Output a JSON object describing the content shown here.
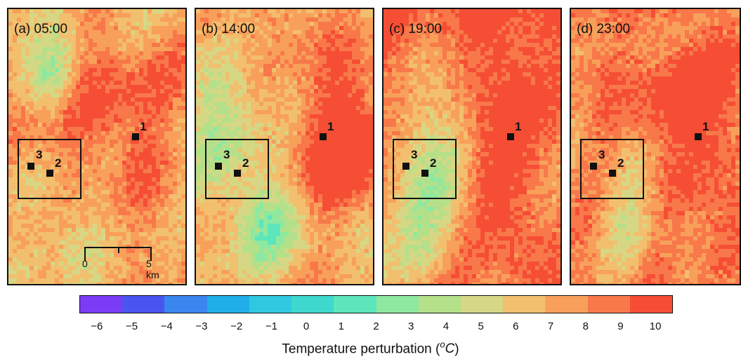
{
  "chart_data": {
    "type": "heatmap",
    "panels": [
      {
        "title": "(a) 05:00",
        "time": "05:00"
      },
      {
        "title": "(b) 14:00",
        "time": "14:00"
      },
      {
        "title": "(c) 19:00",
        "time": "19:00"
      },
      {
        "title": "(d) 23:00",
        "time": "23:00"
      }
    ],
    "site_labels": [
      "1",
      "2",
      "3"
    ],
    "scale_bar": {
      "start_label": "0",
      "end_label": "5 km"
    },
    "colorbar": {
      "label_prefix": "Temperature perturbation (",
      "label_unit_sup": "o",
      "label_unit": "C",
      "label_suffix": ")",
      "ticks": [
        "−6",
        "−5",
        "−4",
        "−3",
        "−2",
        "−1",
        "0",
        "1",
        "2",
        "3",
        "4",
        "5",
        "6",
        "7",
        "8",
        "9",
        "10"
      ],
      "range": [
        -6.5,
        10.5
      ],
      "colors": [
        "#7b3cf5",
        "#4a55f0",
        "#3a86ef",
        "#20aee9",
        "#2fc8e0",
        "#3fd8cf",
        "#5de6bb",
        "#8ee8a0",
        "#b5e08a",
        "#d6d784",
        "#f2bf6f",
        "#f8a05a",
        "#f8784a",
        "#f54e35"
      ]
    }
  }
}
